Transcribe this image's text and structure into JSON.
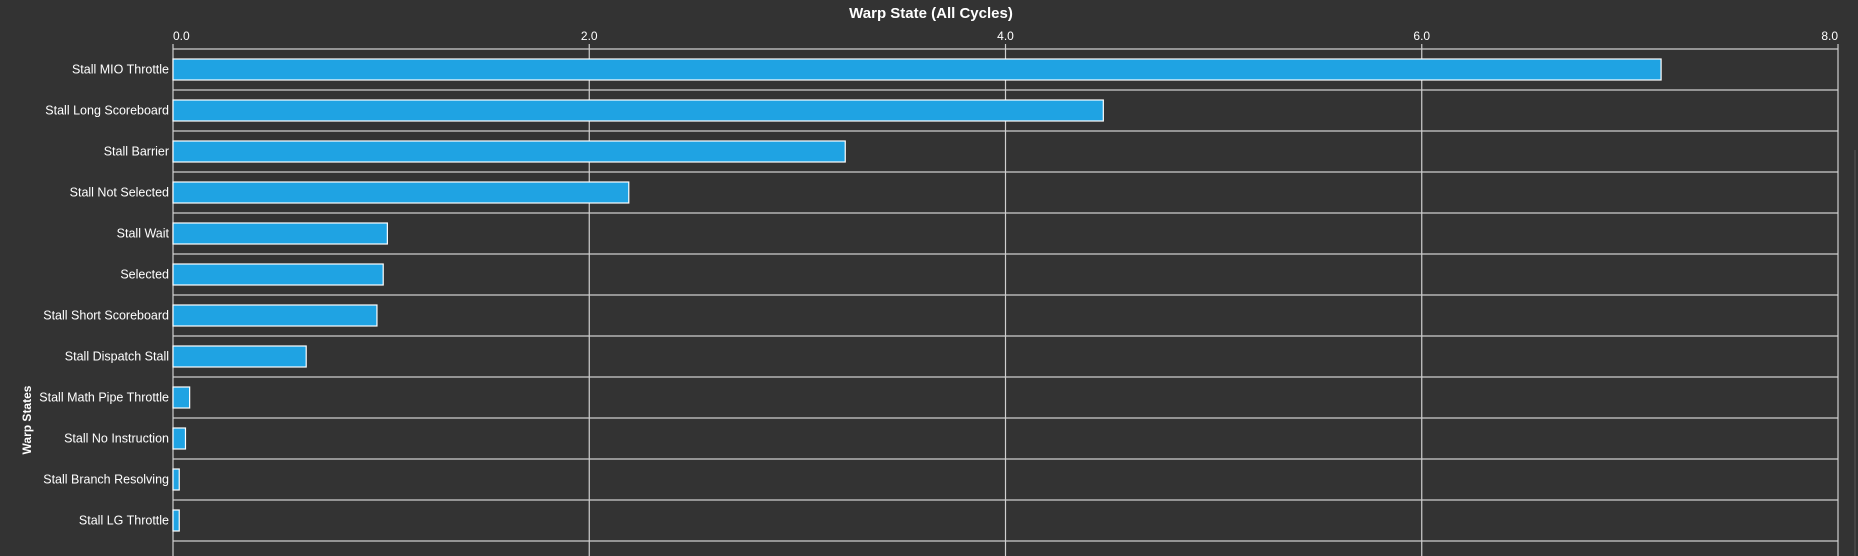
{
  "chart_data": {
    "type": "bar",
    "orientation": "horizontal",
    "title": "Warp State (All Cycles)",
    "xlabel": "",
    "ylabel": "Warp States",
    "xlim": [
      0,
      8
    ],
    "x_ticks": [
      "0.0",
      "2.0",
      "4.0",
      "6.0",
      "8.0"
    ],
    "x_axis_position": "top",
    "grid": true,
    "categories": [
      "Stall MIO Throttle",
      "Stall Long Scoreboard",
      "Stall Barrier",
      "Stall Not Selected",
      "Stall Wait",
      "Selected",
      "Stall Short Scoreboard",
      "Stall Dispatch Stall",
      "Stall Math Pipe Throttle",
      "Stall No Instruction",
      "Stall Branch Resolving",
      "Stall LG Throttle"
    ],
    "values": [
      7.15,
      4.47,
      3.23,
      2.19,
      1.03,
      1.01,
      0.98,
      0.64,
      0.08,
      0.06,
      0.03,
      0.03
    ],
    "colors": {
      "bar": "#1fa3e3",
      "bar_border": "#ffffff",
      "background": "#333333",
      "grid": "#cfcfcf"
    }
  }
}
